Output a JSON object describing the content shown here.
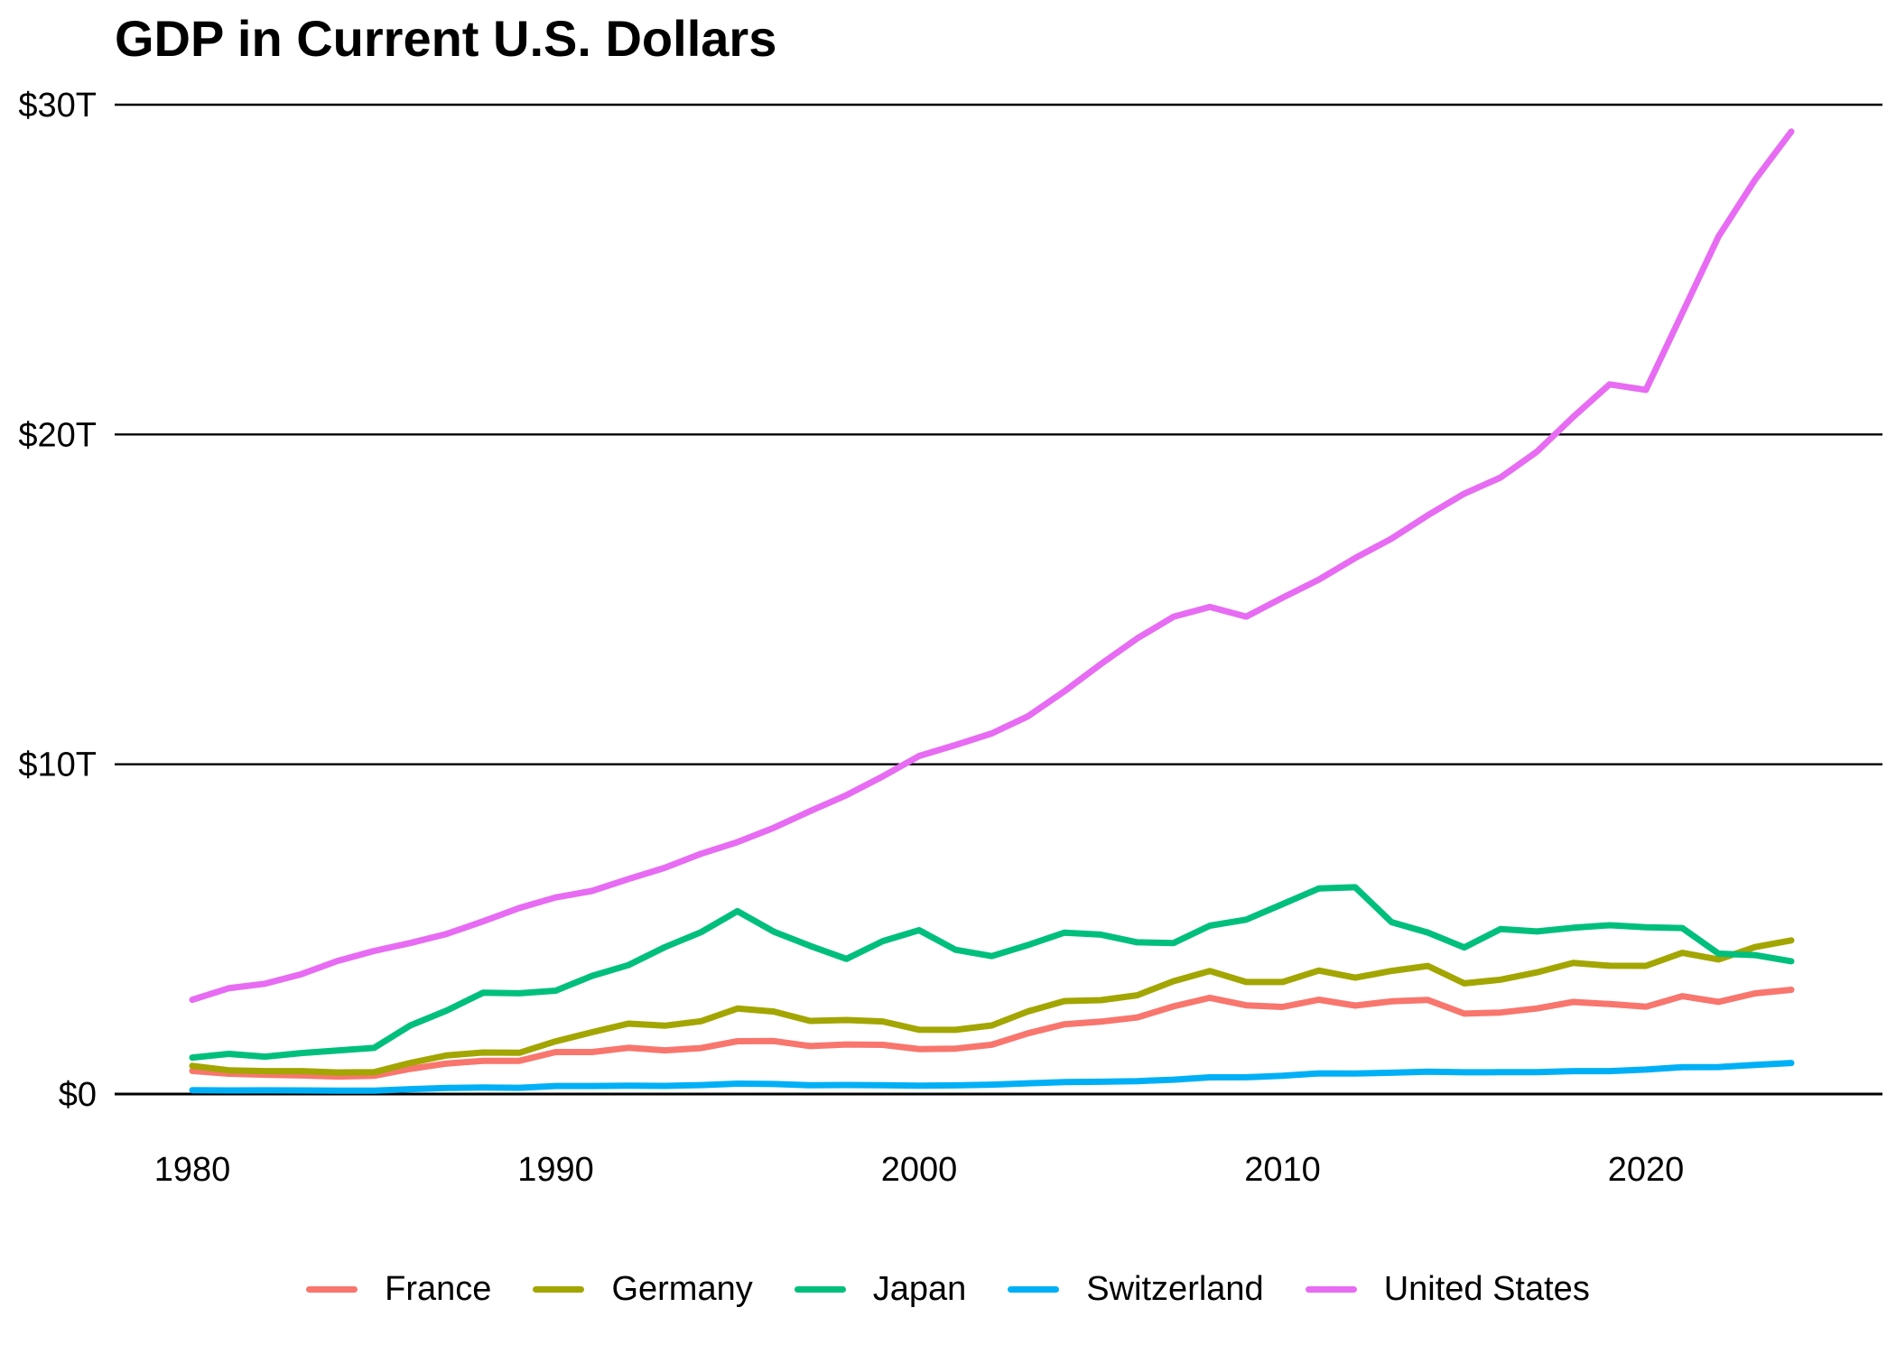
{
  "chart": {
    "title": "GDP in Current U.S. Dollars"
  },
  "chart_data": {
    "type": "line",
    "title": "GDP in Current U.S. Dollars",
    "xlabel": "",
    "ylabel": "",
    "grid": "horizontal",
    "legend_position": "bottom",
    "xlim": [
      1980,
      2024
    ],
    "ylim": [
      0,
      30
    ],
    "x_ticks": [
      "1980",
      "1990",
      "2000",
      "2010",
      "2020"
    ],
    "y_ticks": [
      {
        "value": 0,
        "label": "$0"
      },
      {
        "value": 10,
        "label": "$10T"
      },
      {
        "value": 20,
        "label": "$20T"
      },
      {
        "value": 30,
        "label": "$30T"
      }
    ],
    "unit": "trillions of U.S. dollars",
    "years": [
      1980,
      1981,
      1982,
      1983,
      1984,
      1985,
      1986,
      1987,
      1988,
      1989,
      1990,
      1991,
      1992,
      1993,
      1994,
      1995,
      1996,
      1997,
      1998,
      1999,
      2000,
      2001,
      2002,
      2003,
      2004,
      2005,
      2006,
      2007,
      2008,
      2009,
      2010,
      2011,
      2012,
      2013,
      2014,
      2015,
      2016,
      2017,
      2018,
      2019,
      2020,
      2021,
      2022,
      2023,
      2024
    ],
    "series": [
      {
        "name": "France",
        "color": "#F8766D",
        "values": [
          0.702,
          0.617,
          0.586,
          0.563,
          0.532,
          0.553,
          0.764,
          0.926,
          1.004,
          1.008,
          1.272,
          1.272,
          1.402,
          1.324,
          1.394,
          1.602,
          1.606,
          1.453,
          1.503,
          1.493,
          1.362,
          1.377,
          1.495,
          1.841,
          2.116,
          2.196,
          2.32,
          2.657,
          2.919,
          2.691,
          2.642,
          2.861,
          2.683,
          2.811,
          2.852,
          2.438,
          2.472,
          2.595,
          2.791,
          2.729,
          2.647,
          2.966,
          2.796,
          3.052,
          3.162
        ]
      },
      {
        "name": "Germany",
        "color": "#A3A500",
        "values": [
          0.854,
          0.72,
          0.696,
          0.694,
          0.654,
          0.663,
          0.944,
          1.171,
          1.26,
          1.252,
          1.599,
          1.874,
          2.136,
          2.072,
          2.208,
          2.591,
          2.503,
          2.218,
          2.244,
          2.201,
          1.948,
          1.946,
          2.079,
          2.506,
          2.819,
          2.848,
          2.995,
          3.422,
          3.73,
          3.398,
          3.397,
          3.744,
          3.527,
          3.733,
          3.884,
          3.357,
          3.468,
          3.69,
          3.977,
          3.889,
          3.887,
          4.281,
          4.082,
          4.456,
          4.66
        ]
      },
      {
        "name": "Japan",
        "color": "#00BF7D",
        "values": [
          1.105,
          1.219,
          1.134,
          1.243,
          1.318,
          1.399,
          2.079,
          2.533,
          3.072,
          3.054,
          3.133,
          3.584,
          3.908,
          4.454,
          4.907,
          5.546,
          4.924,
          4.492,
          4.098,
          4.636,
          4.968,
          4.374,
          4.182,
          4.519,
          4.893,
          4.834,
          4.601,
          4.579,
          5.106,
          5.289,
          5.759,
          6.233,
          6.272,
          5.212,
          4.897,
          4.444,
          5.004,
          4.931,
          5.041,
          5.118,
          5.055,
          5.034,
          4.256,
          4.213,
          4.026
        ]
      },
      {
        "name": "Switzerland",
        "color": "#00B0F6",
        "values": [
          0.119,
          0.11,
          0.111,
          0.109,
          0.104,
          0.105,
          0.148,
          0.184,
          0.198,
          0.189,
          0.244,
          0.244,
          0.252,
          0.246,
          0.272,
          0.315,
          0.305,
          0.265,
          0.274,
          0.269,
          0.252,
          0.262,
          0.286,
          0.325,
          0.363,
          0.372,
          0.391,
          0.434,
          0.507,
          0.509,
          0.552,
          0.628,
          0.622,
          0.645,
          0.676,
          0.66,
          0.662,
          0.666,
          0.695,
          0.696,
          0.742,
          0.813,
          0.818,
          0.885,
          0.942
        ]
      },
      {
        "name": "United States",
        "color": "#E76BF3",
        "values": [
          2.857,
          3.207,
          3.344,
          3.634,
          4.038,
          4.339,
          4.58,
          4.855,
          5.236,
          5.642,
          5.963,
          6.158,
          6.52,
          6.859,
          7.287,
          7.64,
          8.073,
          8.578,
          9.063,
          9.631,
          10.251,
          10.582,
          10.936,
          11.458,
          12.214,
          13.037,
          13.815,
          14.474,
          14.77,
          14.478,
          15.049,
          15.6,
          16.254,
          16.843,
          17.551,
          18.206,
          18.695,
          19.477,
          20.533,
          21.521,
          21.354,
          23.681,
          26.007,
          27.721,
          29.185
        ]
      }
    ]
  }
}
